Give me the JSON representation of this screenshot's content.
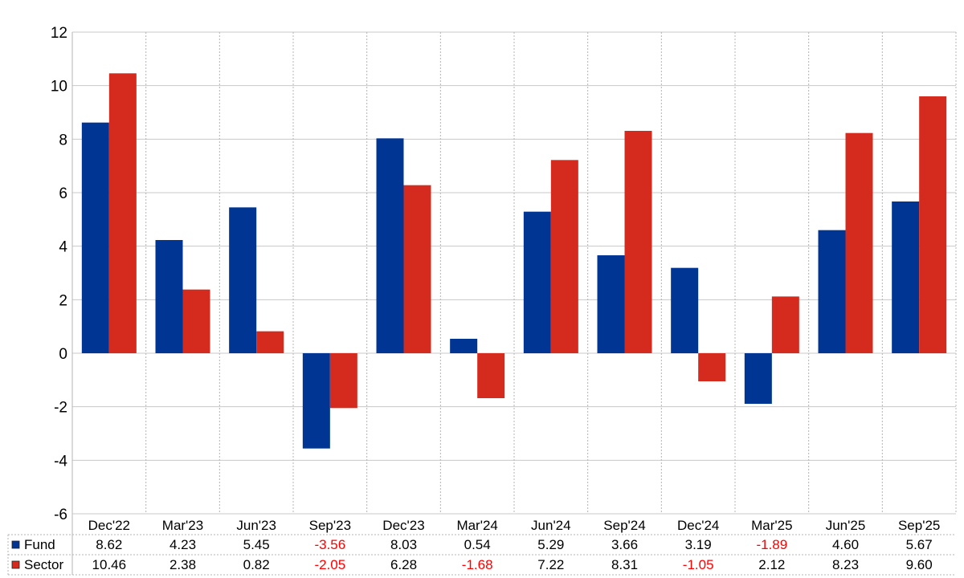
{
  "chart_data": {
    "type": "bar",
    "categories": [
      "Dec'22",
      "Mar'23",
      "Jun'23",
      "Sep'23",
      "Dec'23",
      "Mar'24",
      "Jun'24",
      "Sep'24",
      "Dec'24",
      "Mar'25",
      "Jun'25",
      "Sep'25"
    ],
    "series": [
      {
        "name": "Fund",
        "color": "#003594",
        "values": [
          8.62,
          4.23,
          5.45,
          -3.56,
          8.03,
          0.54,
          5.29,
          3.66,
          3.19,
          -1.89,
          4.6,
          5.67
        ],
        "labels": [
          "8.62",
          "4.23",
          "5.45",
          "-3.56",
          "8.03",
          "0.54",
          "5.29",
          "3.66",
          "3.19",
          "-1.89",
          "4.60",
          "5.67"
        ]
      },
      {
        "name": "Sector",
        "color": "#d52b1e",
        "values": [
          10.46,
          2.38,
          0.82,
          -2.05,
          6.28,
          -1.68,
          7.22,
          8.31,
          -1.05,
          2.12,
          8.23,
          9.6
        ],
        "labels": [
          "10.46",
          "2.38",
          "0.82",
          "-2.05",
          "6.28",
          "-1.68",
          "7.22",
          "8.31",
          "-1.05",
          "2.12",
          "8.23",
          "9.60"
        ]
      }
    ],
    "ylim": [
      -6,
      12
    ],
    "yticks": [
      "12",
      "10",
      "8",
      "6",
      "4",
      "2",
      "0",
      "-2",
      "-4",
      "-6"
    ],
    "negative_value_color": "#ff0000",
    "grid": true,
    "legend": "data-table",
    "title": "",
    "xlabel": "",
    "ylabel": ""
  }
}
